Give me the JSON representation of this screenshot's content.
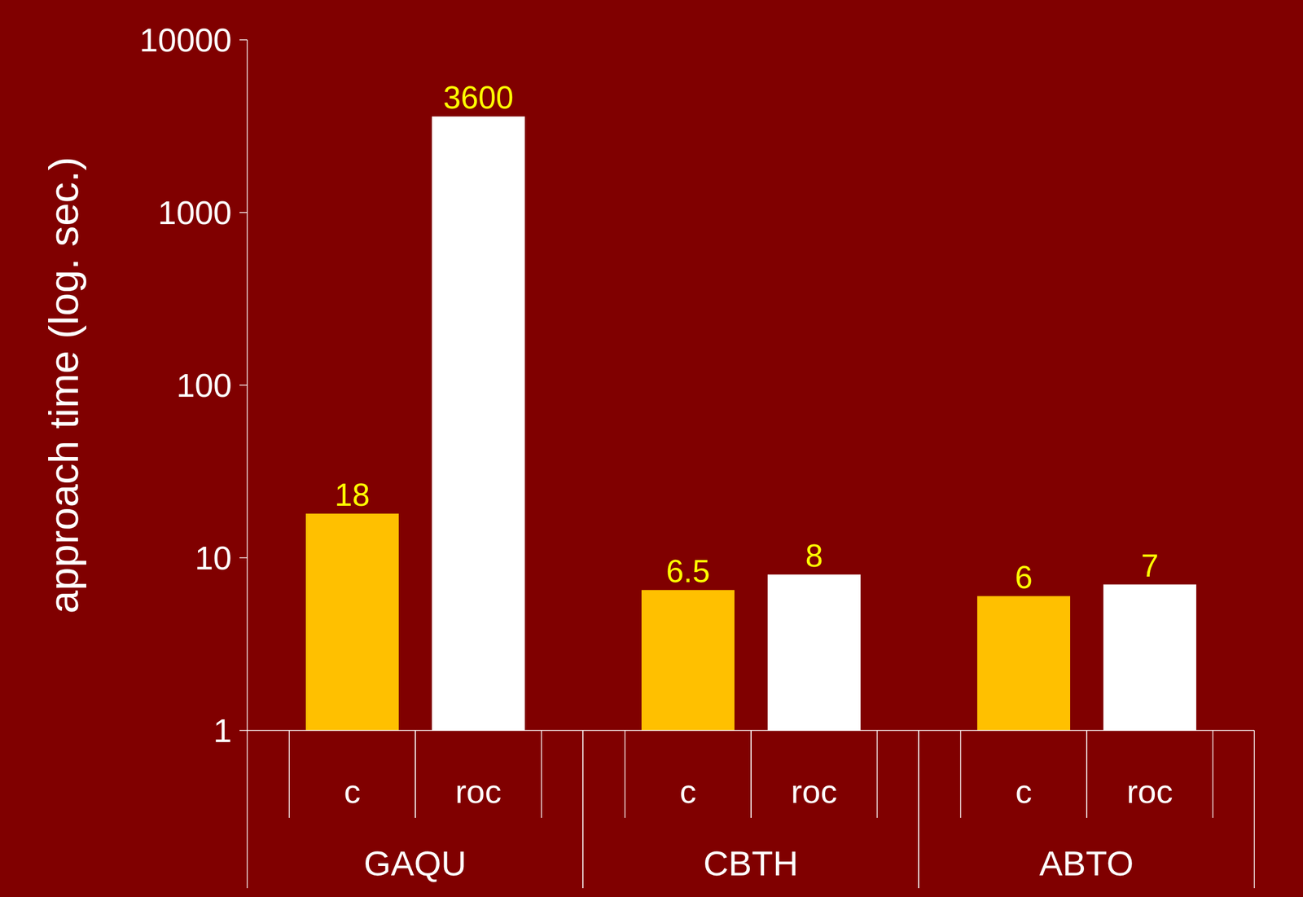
{
  "chart_data": {
    "type": "bar",
    "y_label": "approach time (log. sec.)",
    "categories": [
      "GAQU",
      "CBTH",
      "ABTO"
    ],
    "series": [
      {
        "name": "c",
        "color": "#ffc000",
        "values": [
          18,
          6.5,
          6
        ]
      },
      {
        "name": "roc",
        "color": "#ffffff",
        "values": [
          3600,
          8,
          7
        ]
      }
    ],
    "ylim": [
      1,
      10000
    ],
    "yticks": [
      1,
      10,
      100,
      1000,
      10000
    ],
    "log": "y",
    "data_labels": true,
    "grid": false
  }
}
